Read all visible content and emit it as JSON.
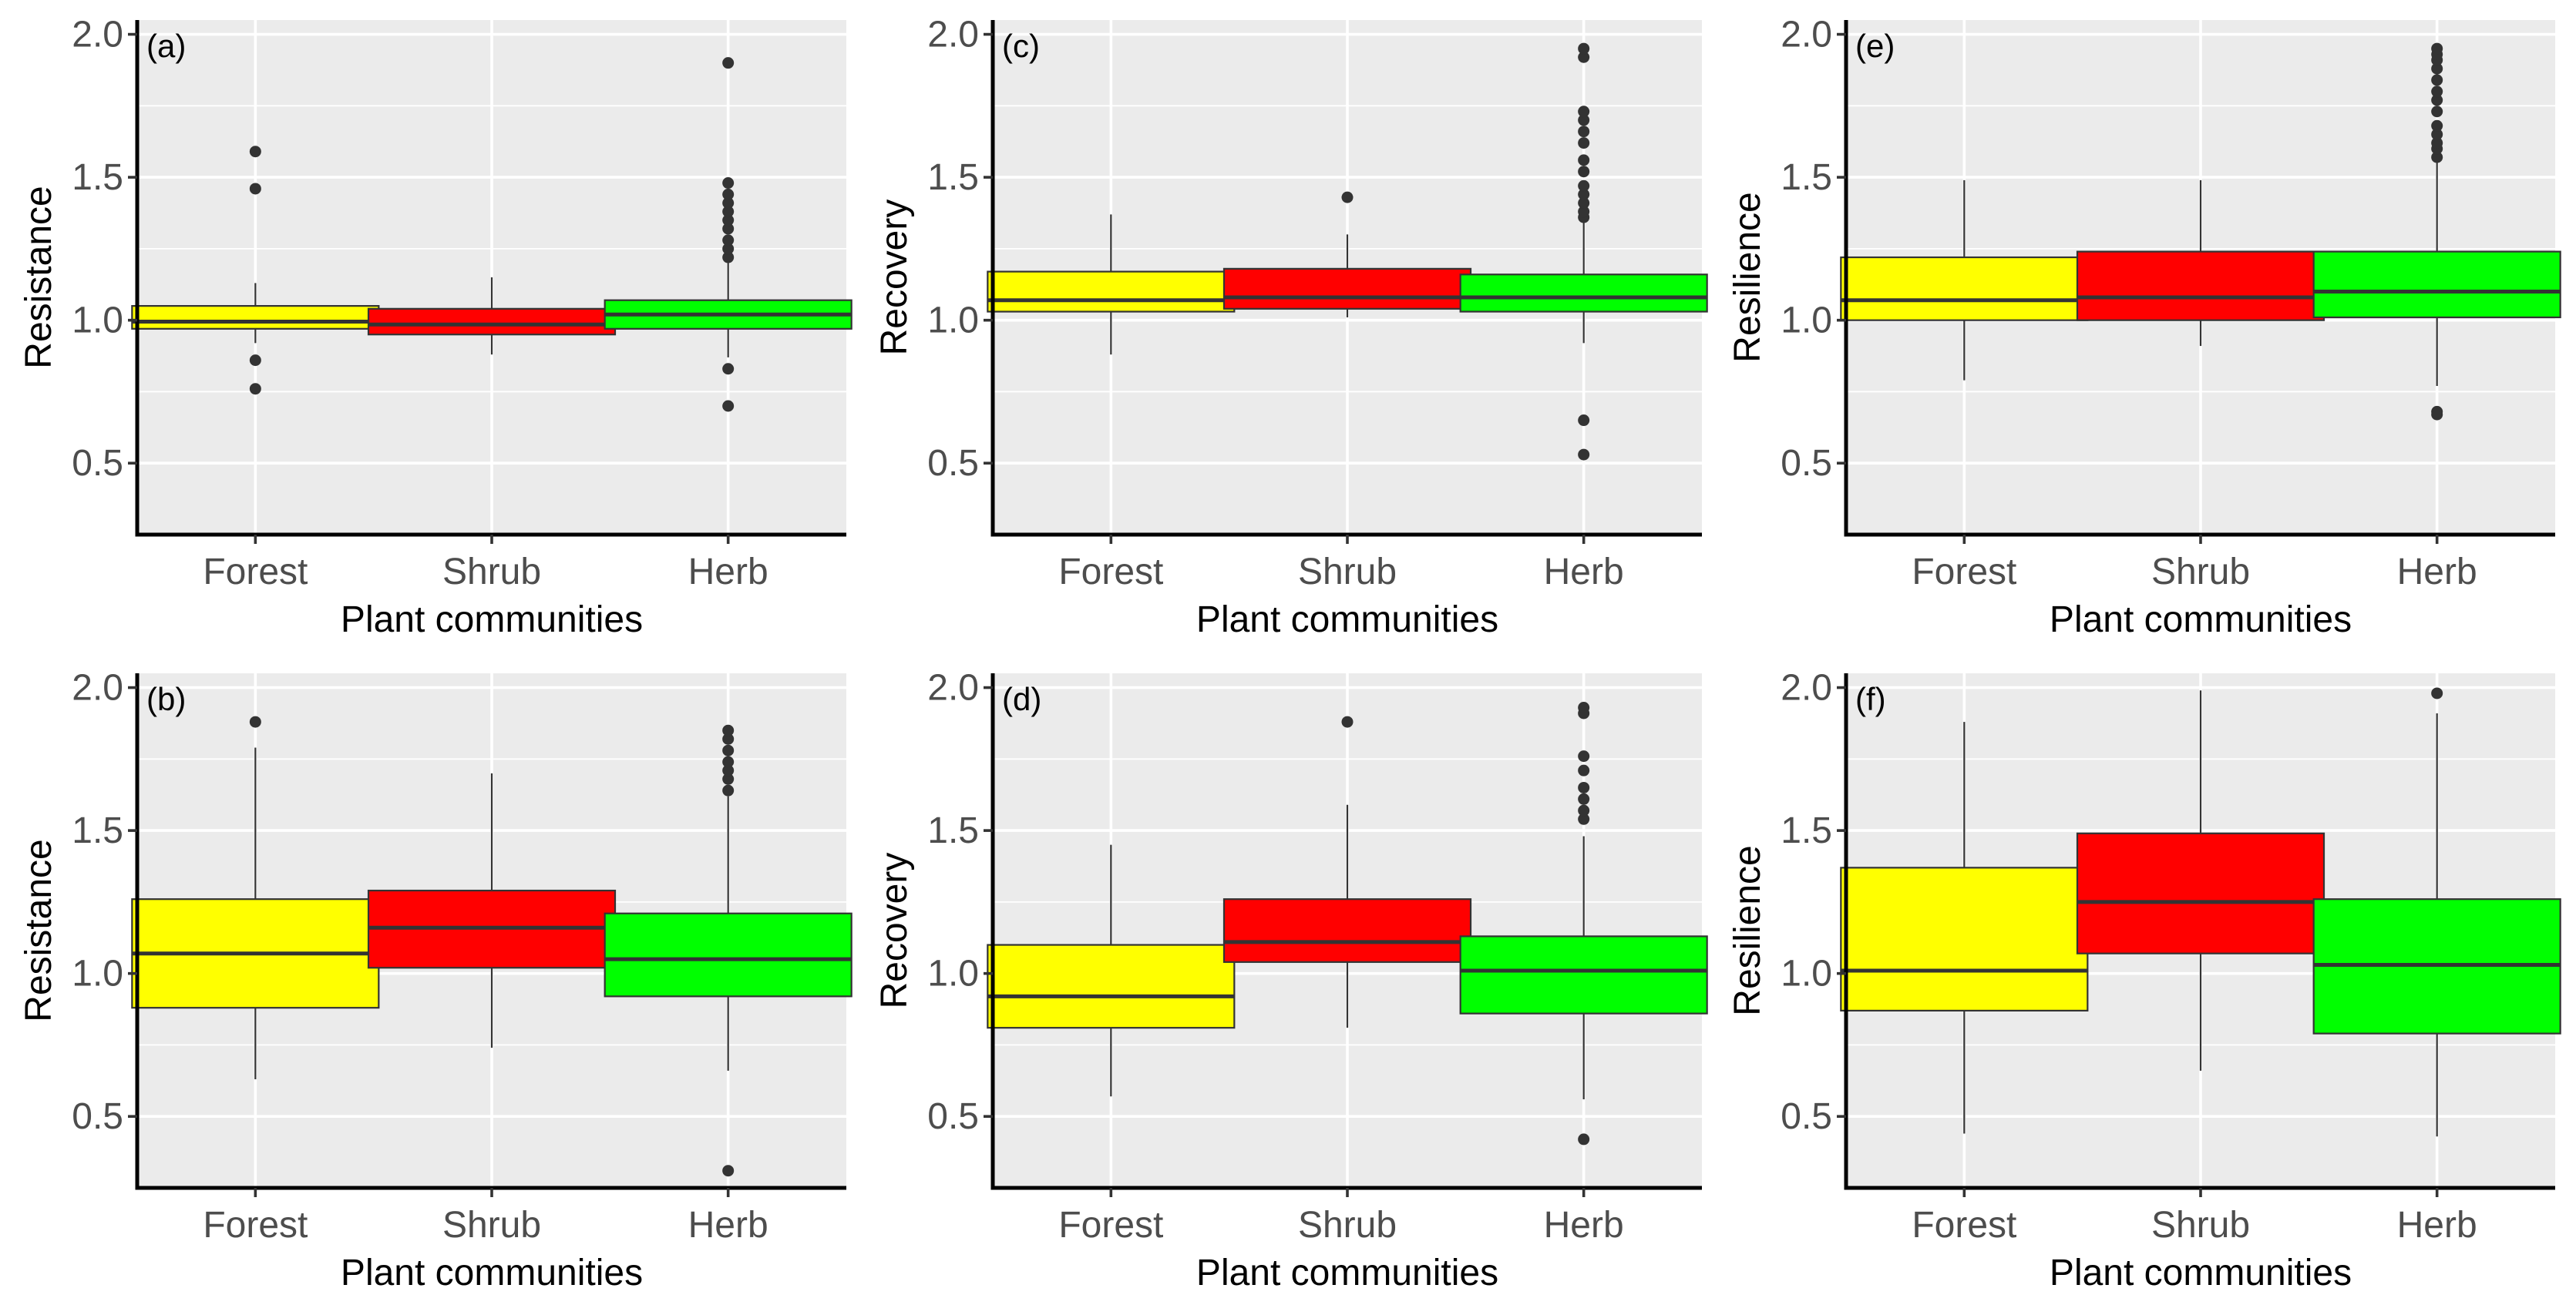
{
  "figure": {
    "layout": "2 rows x 3 columns",
    "colors": {
      "Forest": "#ffff00",
      "Shrub": "#ff0000",
      "Herb": "#00ff00"
    }
  },
  "chart_data": [
    {
      "type": "box",
      "panel": "(a)",
      "xlabel": "Plant communities",
      "ylabel": "Resistance",
      "ylim": [
        0.25,
        2.05
      ],
      "yticks": [
        0.5,
        1.0,
        1.5,
        2.0
      ],
      "ytick_labels": [
        "0.5",
        "1.0",
        "1.5",
        "2.0"
      ],
      "categories": [
        "Forest",
        "Shrub",
        "Herb"
      ],
      "boxes": [
        {
          "name": "Forest",
          "whisker_low": 0.92,
          "q1": 0.97,
          "median": 0.995,
          "q3": 1.05,
          "whisker_high": 1.13,
          "outliers": [
            0.76,
            0.86,
            1.46,
            1.59
          ]
        },
        {
          "name": "Shrub",
          "whisker_low": 0.88,
          "q1": 0.95,
          "median": 0.985,
          "q3": 1.04,
          "whisker_high": 1.15,
          "outliers": []
        },
        {
          "name": "Herb",
          "whisker_low": 0.87,
          "q1": 0.97,
          "median": 1.02,
          "q3": 1.07,
          "whisker_high": 1.2,
          "outliers": [
            0.7,
            0.83,
            1.22,
            1.25,
            1.28,
            1.32,
            1.35,
            1.38,
            1.41,
            1.44,
            1.48,
            1.9
          ]
        }
      ]
    },
    {
      "type": "box",
      "panel": "(c)",
      "xlabel": "Plant communities",
      "ylabel": "Recovery",
      "ylim": [
        0.25,
        2.05
      ],
      "yticks": [
        0.5,
        1.0,
        1.5,
        2.0
      ],
      "ytick_labels": [
        "0.5",
        "1.0",
        "1.5",
        "2.0"
      ],
      "categories": [
        "Forest",
        "Shrub",
        "Herb"
      ],
      "boxes": [
        {
          "name": "Forest",
          "whisker_low": 0.88,
          "q1": 1.03,
          "median": 1.07,
          "q3": 1.17,
          "whisker_high": 1.37,
          "outliers": []
        },
        {
          "name": "Shrub",
          "whisker_low": 1.01,
          "q1": 1.04,
          "median": 1.08,
          "q3": 1.18,
          "whisker_high": 1.3,
          "outliers": [
            1.43
          ]
        },
        {
          "name": "Herb",
          "whisker_low": 0.92,
          "q1": 1.03,
          "median": 1.08,
          "q3": 1.16,
          "whisker_high": 1.34,
          "outliers": [
            0.53,
            0.65,
            1.36,
            1.38,
            1.41,
            1.44,
            1.47,
            1.52,
            1.56,
            1.62,
            1.66,
            1.7,
            1.73,
            1.92,
            1.95
          ]
        }
      ]
    },
    {
      "type": "box",
      "panel": "(e)",
      "xlabel": "Plant communities",
      "ylabel": "Resilience",
      "ylim": [
        0.25,
        2.05
      ],
      "yticks": [
        0.5,
        1.0,
        1.5,
        2.0
      ],
      "ytick_labels": [
        "0.5",
        "1.0",
        "1.5",
        "2.0"
      ],
      "categories": [
        "Forest",
        "Shrub",
        "Herb"
      ],
      "boxes": [
        {
          "name": "Forest",
          "whisker_low": 0.79,
          "q1": 1.0,
          "median": 1.07,
          "q3": 1.22,
          "whisker_high": 1.49,
          "outliers": []
        },
        {
          "name": "Shrub",
          "whisker_low": 0.91,
          "q1": 1.0,
          "median": 1.08,
          "q3": 1.24,
          "whisker_high": 1.49,
          "outliers": []
        },
        {
          "name": "Herb",
          "whisker_low": 0.77,
          "q1": 1.01,
          "median": 1.1,
          "q3": 1.24,
          "whisker_high": 1.55,
          "outliers": [
            0.67,
            0.68,
            1.57,
            1.6,
            1.62,
            1.65,
            1.68,
            1.73,
            1.77,
            1.8,
            1.84,
            1.88,
            1.91,
            1.93,
            1.95
          ]
        }
      ]
    },
    {
      "type": "box",
      "panel": "(b)",
      "xlabel": "Plant communities",
      "ylabel": "Resistance",
      "ylim": [
        0.25,
        2.05
      ],
      "yticks": [
        0.5,
        1.0,
        1.5,
        2.0
      ],
      "ytick_labels": [
        "0.5",
        "1.0",
        "1.5",
        "2.0"
      ],
      "categories": [
        "Forest",
        "Shrub",
        "Herb"
      ],
      "boxes": [
        {
          "name": "Forest",
          "whisker_low": 0.63,
          "q1": 0.88,
          "median": 1.07,
          "q3": 1.26,
          "whisker_high": 1.79,
          "outliers": [
            1.88
          ]
        },
        {
          "name": "Shrub",
          "whisker_low": 0.74,
          "q1": 1.02,
          "median": 1.16,
          "q3": 1.29,
          "whisker_high": 1.7,
          "outliers": []
        },
        {
          "name": "Herb",
          "whisker_low": 0.66,
          "q1": 0.92,
          "median": 1.05,
          "q3": 1.21,
          "whisker_high": 1.62,
          "outliers": [
            0.31,
            1.64,
            1.68,
            1.71,
            1.74,
            1.78,
            1.82,
            1.85
          ]
        }
      ]
    },
    {
      "type": "box",
      "panel": "(d)",
      "xlabel": "Plant communities",
      "ylabel": "Recovery",
      "ylim": [
        0.25,
        2.05
      ],
      "yticks": [
        0.5,
        1.0,
        1.5,
        2.0
      ],
      "ytick_labels": [
        "0.5",
        "1.0",
        "1.5",
        "2.0"
      ],
      "categories": [
        "Forest",
        "Shrub",
        "Herb"
      ],
      "boxes": [
        {
          "name": "Forest",
          "whisker_low": 0.57,
          "q1": 0.81,
          "median": 0.92,
          "q3": 1.1,
          "whisker_high": 1.45,
          "outliers": []
        },
        {
          "name": "Shrub",
          "whisker_low": 0.81,
          "q1": 1.04,
          "median": 1.11,
          "q3": 1.26,
          "whisker_high": 1.59,
          "outliers": [
            1.88
          ]
        },
        {
          "name": "Herb",
          "whisker_low": 0.56,
          "q1": 0.86,
          "median": 1.01,
          "q3": 1.13,
          "whisker_high": 1.48,
          "outliers": [
            0.42,
            1.54,
            1.57,
            1.61,
            1.65,
            1.71,
            1.76,
            1.91,
            1.93
          ]
        }
      ]
    },
    {
      "type": "box",
      "panel": "(f)",
      "xlabel": "Plant communities",
      "ylabel": "Resilience",
      "ylim": [
        0.25,
        2.05
      ],
      "yticks": [
        0.5,
        1.0,
        1.5,
        2.0
      ],
      "ytick_labels": [
        "0.5",
        "1.0",
        "1.5",
        "2.0"
      ],
      "categories": [
        "Forest",
        "Shrub",
        "Herb"
      ],
      "boxes": [
        {
          "name": "Forest",
          "whisker_low": 0.44,
          "q1": 0.87,
          "median": 1.01,
          "q3": 1.37,
          "whisker_high": 1.88,
          "outliers": []
        },
        {
          "name": "Shrub",
          "whisker_low": 0.66,
          "q1": 1.07,
          "median": 1.25,
          "q3": 1.49,
          "whisker_high": 1.99,
          "outliers": []
        },
        {
          "name": "Herb",
          "whisker_low": 0.43,
          "q1": 0.79,
          "median": 1.03,
          "q3": 1.26,
          "whisker_high": 1.91,
          "outliers": [
            1.98
          ]
        }
      ]
    }
  ]
}
